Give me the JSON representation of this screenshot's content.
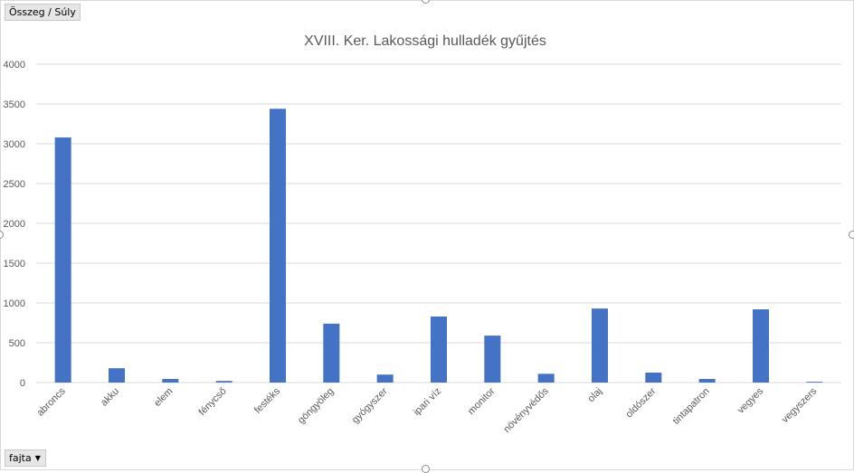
{
  "value_field": {
    "label": "Összeg / Súly"
  },
  "axis_field": {
    "label": "fajta",
    "icon": "dropdown-arrow-icon"
  },
  "colors": {
    "bar": "#4472c4",
    "grid": "#d9d9d9",
    "text": "#595959"
  },
  "chart_data": {
    "type": "bar",
    "title": "XVIII. Ker. Lakossági hulladék gyűjtés",
    "xlabel": "",
    "ylabel": "",
    "ylim": [
      0,
      4000
    ],
    "yticks": [
      "0",
      "500",
      "1000",
      "1500",
      "2000",
      "2500",
      "3000",
      "3500",
      "4000"
    ],
    "grid": true,
    "legend": "none",
    "categories": [
      "abroncs",
      "akku",
      "elem",
      "fénycső",
      "festéks",
      "göngyöleg",
      "gyógyszer",
      "ipari víz",
      "monitor",
      "növényvédős",
      "olaj",
      "oldószer",
      "tintapatron",
      "vegyes",
      "vegyszers"
    ],
    "values": [
      3080,
      180,
      45,
      20,
      3440,
      740,
      100,
      830,
      590,
      110,
      930,
      125,
      45,
      920,
      10
    ]
  }
}
